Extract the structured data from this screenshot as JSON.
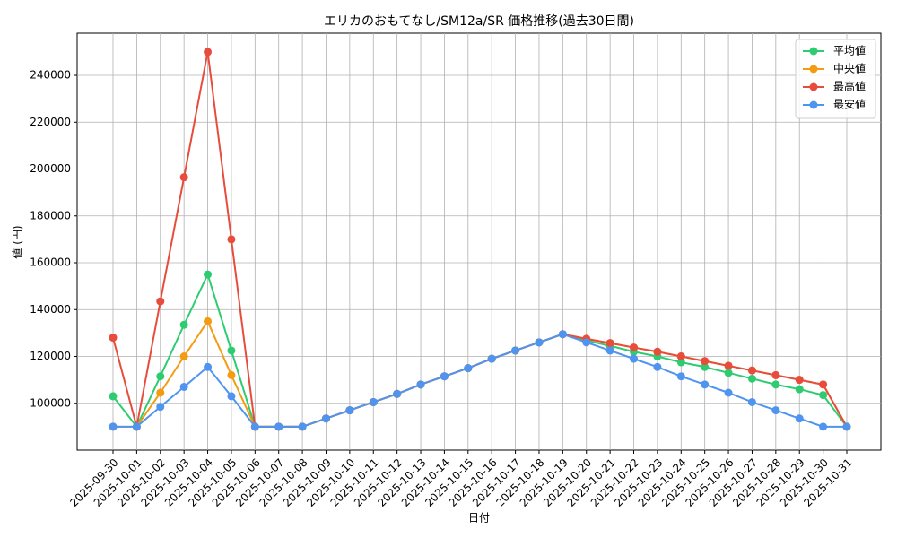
{
  "chart_data": {
    "type": "line",
    "title": "エリカのおもてなし/SM12a/SR 価格推移(過去30日間)",
    "x_label": "日付",
    "y_label": "値 (円)",
    "categories": [
      "2025-09-30",
      "2025-10-01",
      "2025-10-02",
      "2025-10-03",
      "2025-10-04",
      "2025-10-05",
      "2025-10-06",
      "2025-10-07",
      "2025-10-08",
      "2025-10-09",
      "2025-10-10",
      "2025-10-11",
      "2025-10-12",
      "2025-10-13",
      "2025-10-14",
      "2025-10-15",
      "2025-10-16",
      "2025-10-17",
      "2025-10-18",
      "2025-10-19",
      "2025-10-20",
      "2025-10-21",
      "2025-10-22",
      "2025-10-23",
      "2025-10-24",
      "2025-10-25",
      "2025-10-26",
      "2025-10-27",
      "2025-10-28",
      "2025-10-29",
      "2025-10-30",
      "2025-10-31"
    ],
    "series": [
      {
        "name": "平均値",
        "color": "#2ecc71",
        "values": [
          103000,
          90000,
          111500,
          133500,
          155000,
          122500,
          90000,
          90000,
          90000,
          93500,
          97000,
          100500,
          104000,
          108000,
          111500,
          115000,
          119000,
          122500,
          126000,
          129500,
          126800,
          124500,
          122000,
          120000,
          117500,
          115500,
          113000,
          110500,
          108000,
          106000,
          103500,
          90000
        ]
      },
      {
        "name": "中央値",
        "color": "#f39c12",
        "values": [
          90000,
          90000,
          104500,
          120000,
          135000,
          112000,
          90000,
          90000,
          90000,
          93500,
          97000,
          100500,
          104000,
          108000,
          111500,
          115000,
          119000,
          122500,
          126000,
          129500,
          127500,
          125700,
          123800,
          122000,
          120000,
          118000,
          116000,
          114000,
          112000,
          110000,
          108000,
          90000
        ]
      },
      {
        "name": "最高値",
        "color": "#e74c3c",
        "values": [
          128000,
          90000,
          143500,
          196500,
          250000,
          170000,
          90000,
          90000,
          90000,
          93500,
          97000,
          100500,
          104000,
          108000,
          111500,
          115000,
          119000,
          122500,
          126000,
          129500,
          127500,
          125700,
          123800,
          122000,
          120000,
          118000,
          116000,
          114000,
          112000,
          110000,
          108000,
          90000
        ]
      },
      {
        "name": "最安値",
        "color": "#4f94ef",
        "values": [
          90000,
          90000,
          98500,
          107000,
          115500,
          103000,
          90000,
          90000,
          90000,
          93500,
          97000,
          100500,
          104000,
          108000,
          111500,
          115000,
          119000,
          122500,
          126000,
          129500,
          126000,
          122500,
          119000,
          115500,
          111500,
          108000,
          104500,
          100500,
          97000,
          93500,
          90000,
          90000
        ]
      }
    ],
    "ylim": [
      80000,
      258000
    ],
    "yticks": [
      100000,
      120000,
      140000,
      160000,
      180000,
      200000,
      220000,
      240000
    ],
    "grid": true,
    "legend": "upper right"
  }
}
